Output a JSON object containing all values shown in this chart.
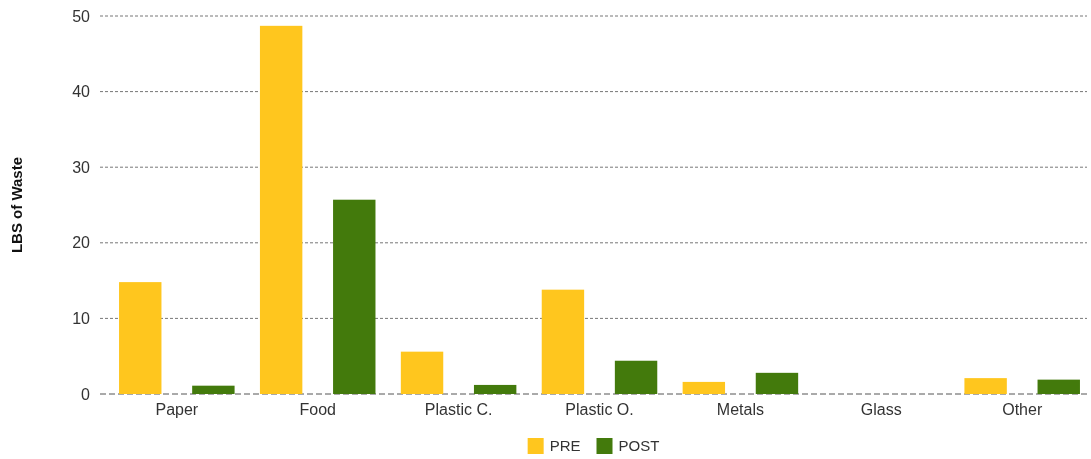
{
  "chart_data": {
    "type": "bar",
    "ylabel": "LBS of Waste",
    "categories": [
      "Paper",
      "Food",
      "Plastic C.",
      "Plastic O.",
      "Metals",
      "Glass",
      "Other"
    ],
    "series": [
      {
        "name": "PRE",
        "color": "#ffc61e",
        "values": [
          14.8,
          48.7,
          5.6,
          13.8,
          1.6,
          0,
          2.1
        ]
      },
      {
        "name": "POST",
        "color": "#437a0c",
        "values": [
          1.1,
          25.7,
          1.2,
          4.4,
          2.8,
          0,
          1.9
        ]
      }
    ],
    "ylim": [
      0,
      50
    ],
    "yticks": [
      0,
      10,
      20,
      30,
      40,
      50
    ],
    "grid": "y",
    "legend": "bottom"
  }
}
